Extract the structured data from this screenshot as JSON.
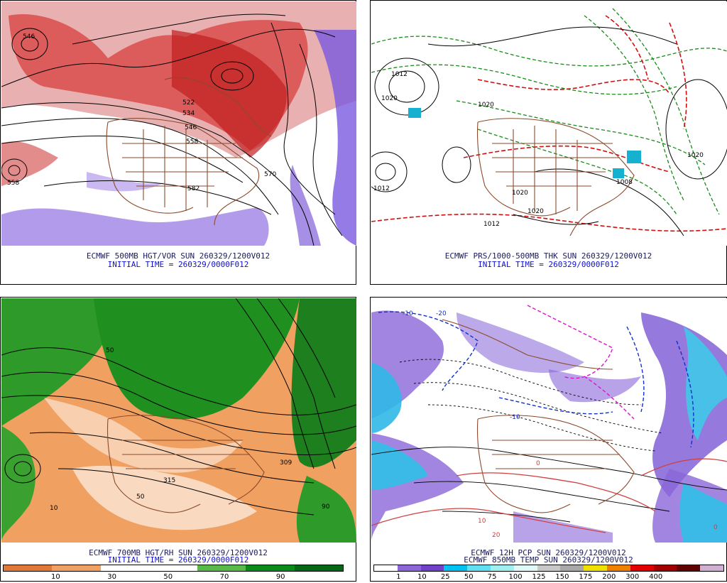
{
  "panels": {
    "hgt_vor": {
      "title": "ECMWF 500MB HGT/VOR SUN 260329/1200V012",
      "subtitle": "INITIAL TIME = 260329/0000F012",
      "contour_labels": [
        "546",
        "522",
        "534",
        "546",
        "558",
        "570",
        "582",
        "558"
      ]
    },
    "prs_thk": {
      "title": "ECMWF PRS/1000-500MB THK SUN 260329/1200V012",
      "subtitle": "INITIAL TIME = 260329/0000F012",
      "contour_labels": [
        "1012",
        "1020",
        "1012",
        "1020",
        "1020",
        "1012",
        "1020",
        "1008",
        "1020"
      ]
    },
    "hgt_rh": {
      "title": "ECMWF 700MB HGT/RH SUN 260329/1200V012",
      "subtitle": "INITIAL TIME = 260329/0000F012",
      "contour_labels": [
        "309",
        "315",
        "50",
        "90",
        "10",
        "50"
      ]
    },
    "pcp_temp": {
      "title": "ECMWF 12H PCP SUN 260329/1200V012",
      "subtitle": "ECMWF 850MB TEMP SUN 260329/1200V012",
      "contour_labels": [
        "-10",
        "-20",
        "-10",
        "0",
        "10",
        "20",
        "0"
      ]
    }
  },
  "legends": {
    "rh": {
      "colors": [
        "#e07838",
        "#f0a060",
        "#ffffff",
        "#ffffff",
        "#59b84a",
        "#0a8a1a",
        "#066614"
      ],
      "ticks": [
        "10",
        "30",
        "50",
        "70",
        "90"
      ]
    },
    "pcp": {
      "colors": [
        "#ffffff",
        "#8a66d8",
        "#7040c8",
        "#00c0f0",
        "#60e0f0",
        "#a0f0f0",
        "#e0f8f8",
        "#c8c8c8",
        "#a8a8a8",
        "#f0e000",
        "#f08000",
        "#e00000",
        "#a00000",
        "#600000",
        "#d0b0d0"
      ],
      "ticks": [
        "1",
        "10",
        "25",
        "50",
        "75",
        "100",
        "125",
        "150",
        "175",
        "200",
        "300",
        "400"
      ]
    }
  }
}
